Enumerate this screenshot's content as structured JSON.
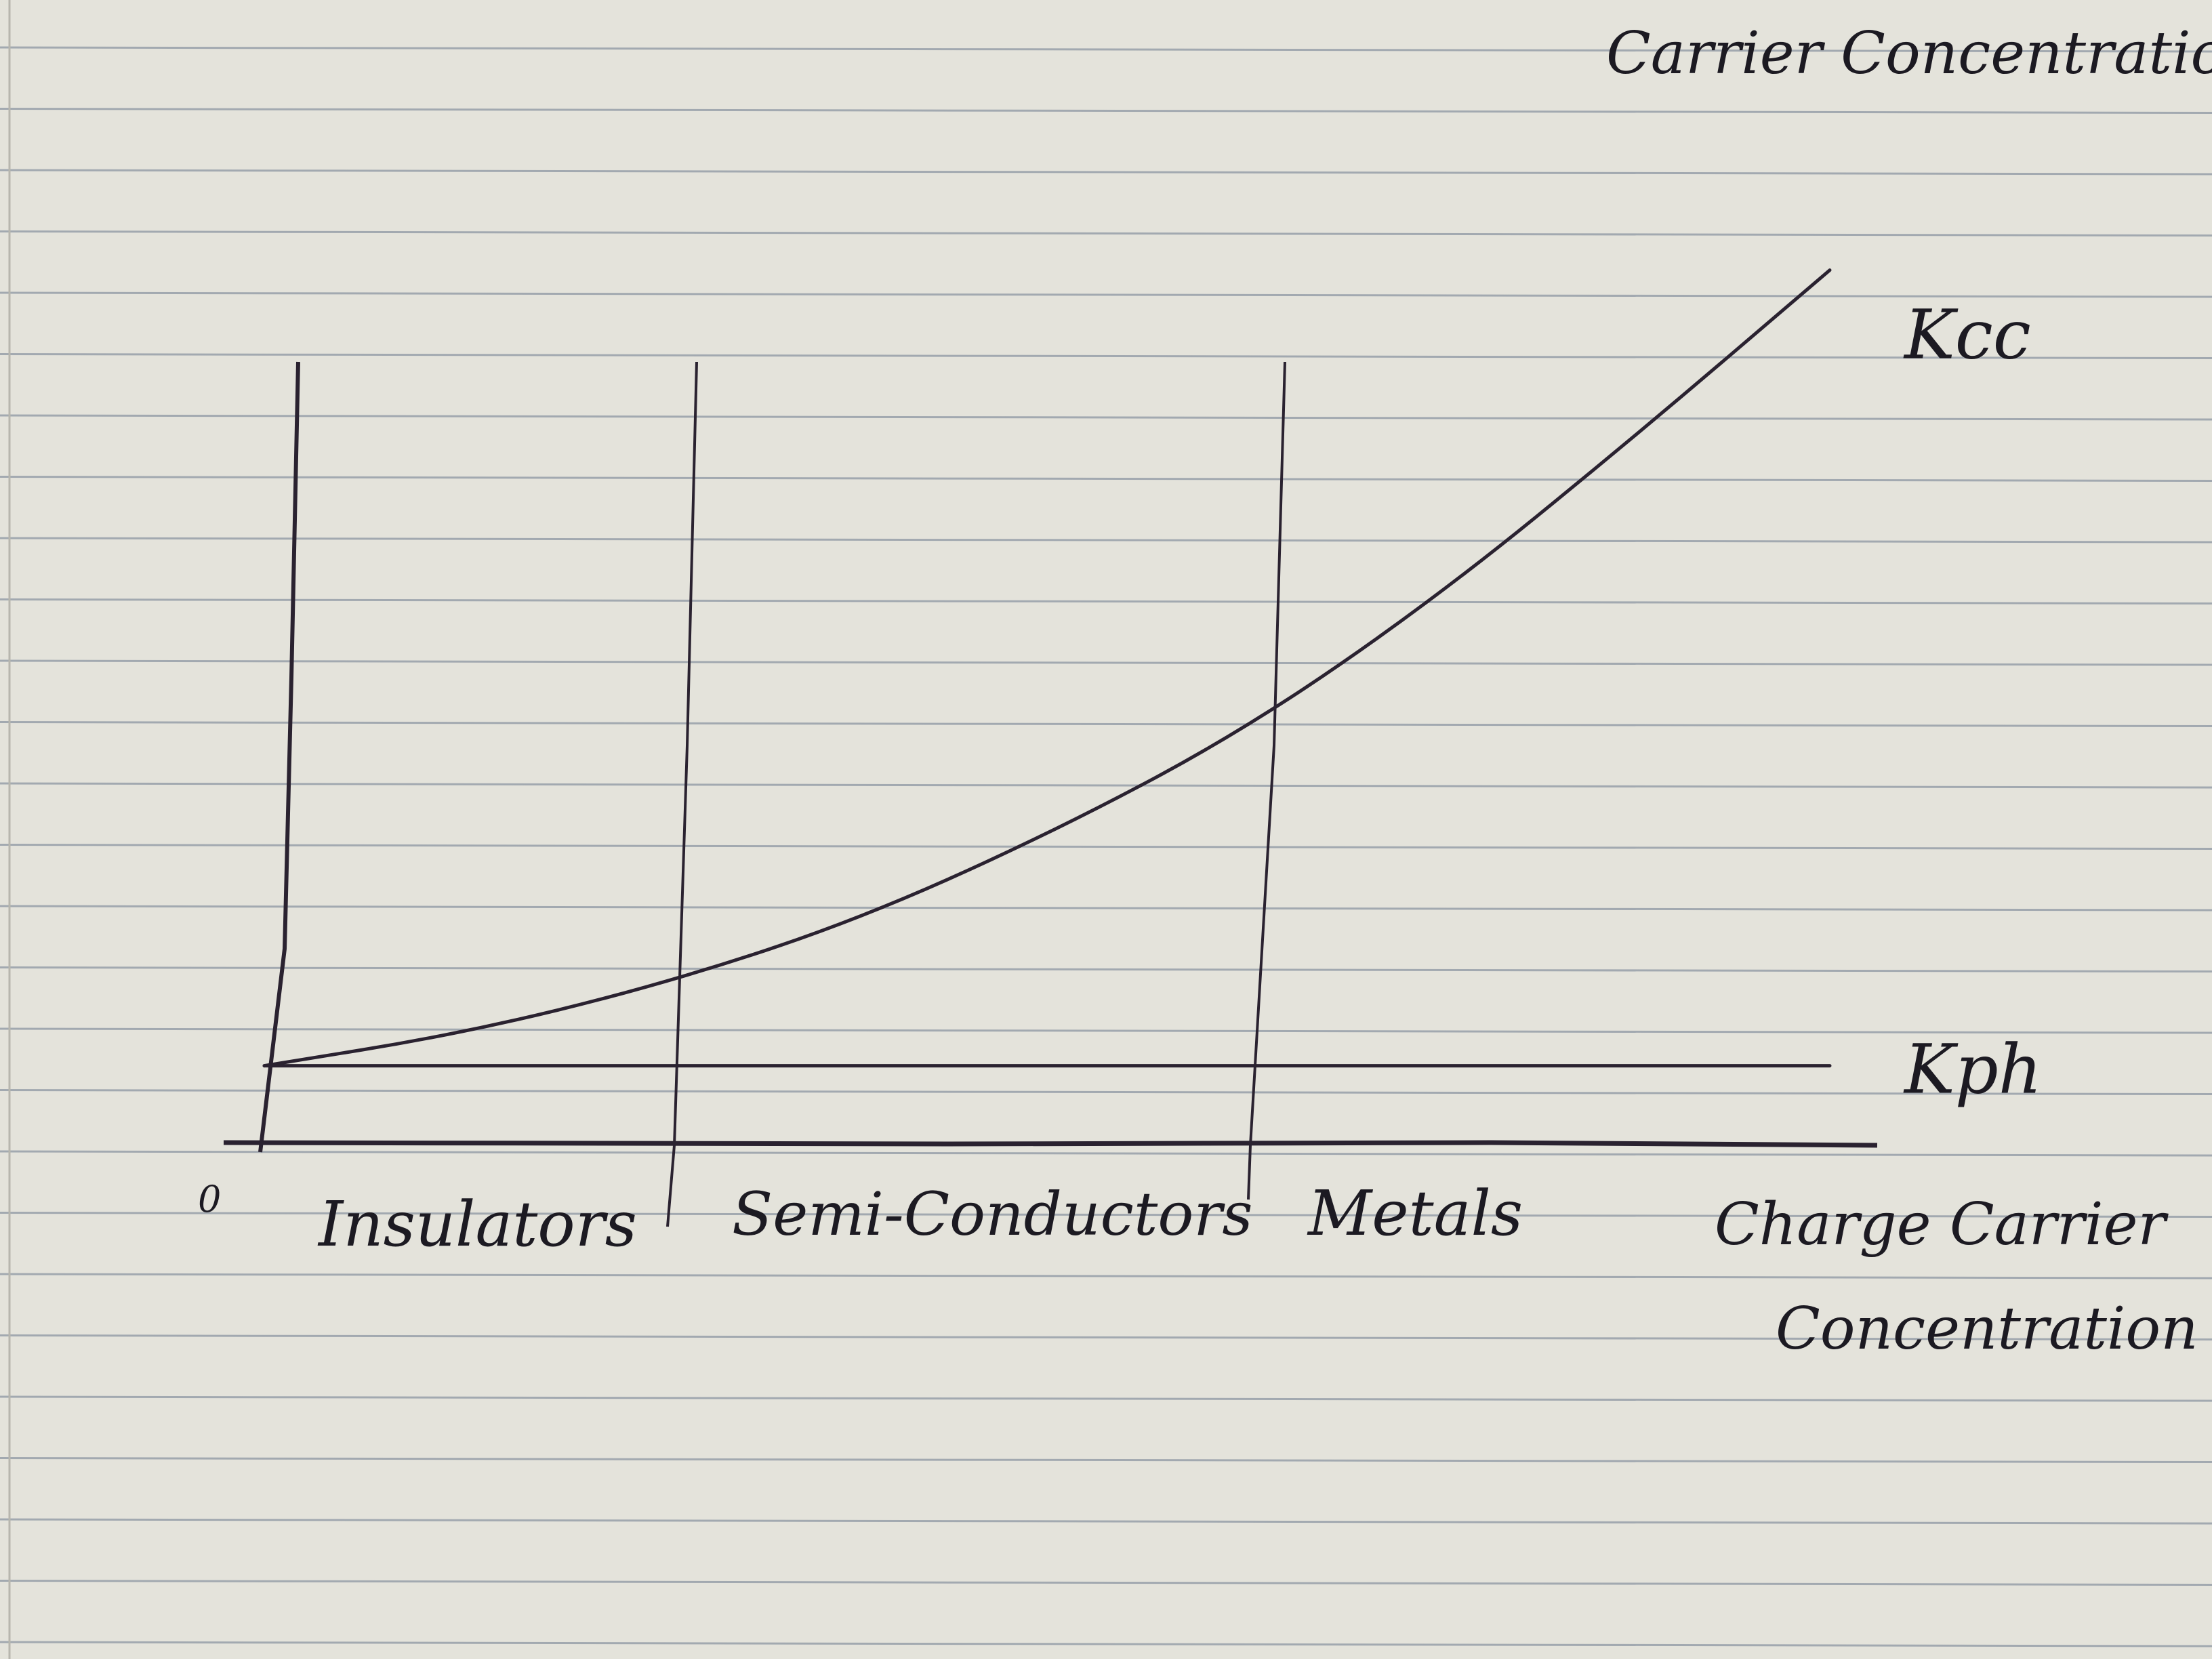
{
  "page": {
    "top_note": "Carrier Concentration",
    "colors": {
      "paper": "#e4e3db",
      "rule": "#8d96a2",
      "ink": "#2a2230"
    }
  },
  "chart_data": {
    "type": "line",
    "title": "",
    "xlabel": "Charge Carrier Concentration",
    "ylabel": "",
    "origin_label": "0",
    "regions": [
      "Insulators",
      "Semi-Conductors",
      "Metals"
    ],
    "x": [
      0,
      1,
      2,
      3,
      4,
      5,
      6,
      7,
      8
    ],
    "xlim": [
      0,
      8
    ],
    "ylim": [
      0,
      10
    ],
    "series": [
      {
        "name": "Kcc",
        "values": [
          1.0,
          1.4,
          2.0,
          2.8,
          3.9,
          5.2,
          6.9,
          8.9,
          11.0
        ]
      },
      {
        "name": "Kph",
        "values": [
          1.0,
          1.0,
          1.0,
          1.0,
          1.0,
          1.0,
          1.0,
          1.0,
          1.0
        ]
      }
    ],
    "grid": false,
    "legend": "line-end labels"
  }
}
